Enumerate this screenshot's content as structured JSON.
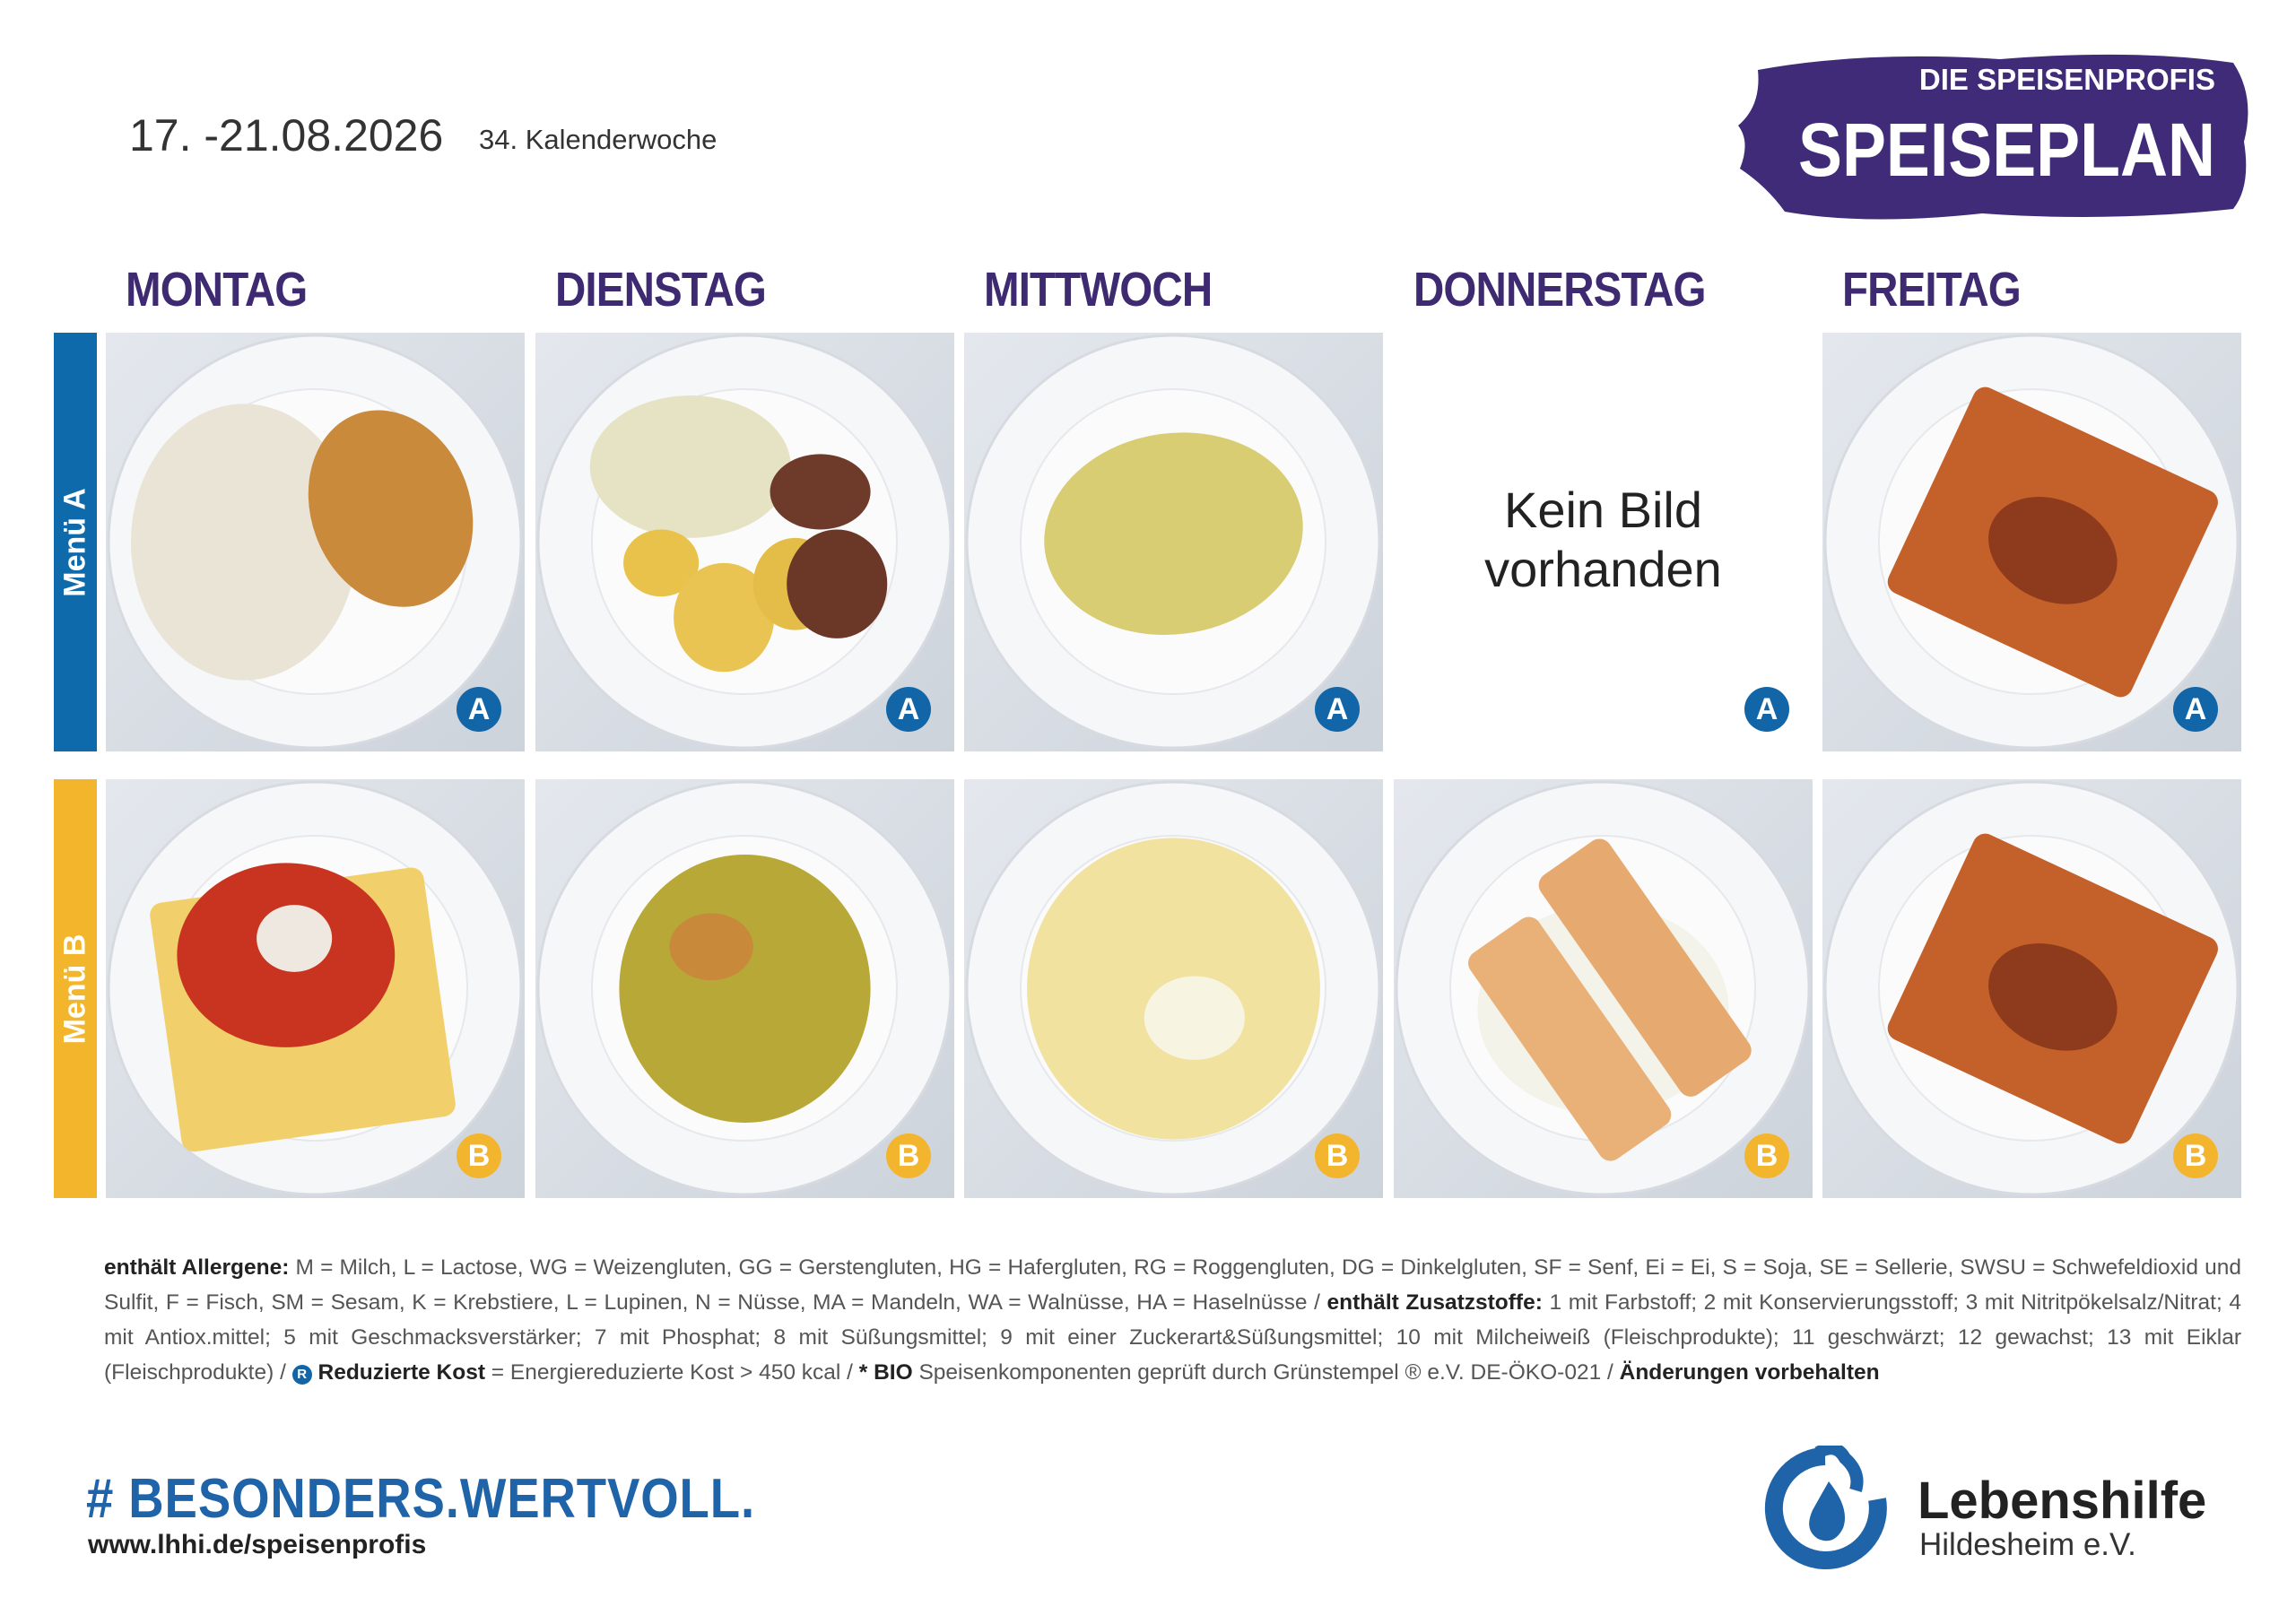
{
  "header": {
    "date": "17. -21.08.2026",
    "week": "34. Kalenderwoche"
  },
  "logo": {
    "brand": "DIE SPEISENPROFIS",
    "title": "SPEISEPLAN"
  },
  "days": [
    "MONTAG",
    "DIENSTAG",
    "MITTWOCH",
    "DONNERSTAG",
    "FREITAG"
  ],
  "rows": [
    {
      "label": "Menü A",
      "badge": "A",
      "no_image": [
        null,
        null,
        null,
        "Kein Bild vorhanden",
        null
      ]
    },
    {
      "label": "Menü B",
      "badge": "B",
      "no_image": [
        null,
        null,
        null,
        null,
        null
      ]
    }
  ],
  "allergens": [
    {
      "style": "bold",
      "text": "enthält Allergene:"
    },
    {
      "style": "normal",
      "text": " M = Milch, L = Lactose, WG = Weizengluten, GG = Gerstengluten, HG = Hafergluten, RG = Roggengluten, DG = Dinkelgluten, SF = Senf, Ei = Ei, S = Soja, SE = Sellerie, SWSU = Schwefeldioxid und Sulfit, F = Fisch, SM = Sesam, K = Krebstiere, L = Lupinen, N = Nüsse, MA = Mandeln, WA = Walnüsse, HA = Haselnüsse / "
    },
    {
      "style": "bold",
      "text": "enthält Zusatzstoffe:"
    },
    {
      "style": "normal",
      "text": " 1 mit Farbstoff; 2 mit Konservierungsstoff; 3 mit Nitritpökelsalz/Nitrat; 4 mit Antiox.mittel; 5 mit Geschmacksverstärker; 7 mit Phosphat; 8 mit Süßungsmittel; 9 mit einer Zuckerart&Süßungsmittel; 10 mit Milcheiweiß (Fleischprodukte); 11 geschwärzt; 12 gewachst; 13 mit Eiklar (Fleischprodukte) / "
    },
    {
      "style": "icon",
      "text": "R"
    },
    {
      "style": "bold",
      "text": " Reduzierte Kost"
    },
    {
      "style": "normal",
      "text": " = Energiereduzierte Kost > 450 kcal / "
    },
    {
      "style": "bold",
      "text": "* BIO"
    },
    {
      "style": "normal",
      "text": " Speisenkomponenten geprüft durch Grünstempel ® e.V. DE-ÖKO-021 / "
    },
    {
      "style": "bold",
      "text": "Änderungen vorbehalten"
    }
  ],
  "footer": {
    "hashtag": "# BESONDERS.WERTVOLL.",
    "url": "www.lhhi.de/speisenprofis"
  },
  "org": {
    "name": "Lebenshilfe",
    "location": "Hildesheim e.V."
  }
}
